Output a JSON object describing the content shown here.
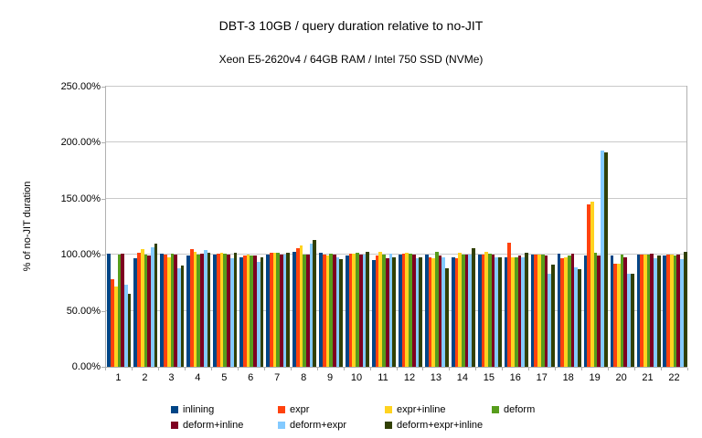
{
  "chart_data": {
    "type": "bar",
    "title": "DBT-3 10GB / query duration relative to no-JIT",
    "subtitle": "Xeon E5-2620v4 / 64GB RAM / Intel 750 SSD (NVMe)",
    "xlabel": "",
    "ylabel": "% of no-JIT duration",
    "units": "percent of no-JIT duration",
    "ylim": [
      0,
      250
    ],
    "ytick_step": 50,
    "ytick_labels": [
      "0.00%",
      "50.00%",
      "100.00%",
      "150.00%",
      "200.00%",
      "250.00%"
    ],
    "grid": true,
    "legend_position": "bottom",
    "categories": [
      "1",
      "2",
      "3",
      "4",
      "5",
      "6",
      "7",
      "8",
      "9",
      "10",
      "11",
      "12",
      "13",
      "14",
      "15",
      "16",
      "17",
      "18",
      "19",
      "20",
      "21",
      "22"
    ],
    "series": [
      {
        "name": "inlining",
        "color": "#004586",
        "values": [
          101,
          97,
          101,
          99,
          100,
          98,
          100,
          103,
          102,
          99,
          95,
          100,
          100,
          98,
          100,
          98,
          100,
          101,
          99,
          99,
          100,
          99
        ]
      },
      {
        "name": "expr",
        "color": "#ff420e",
        "values": [
          78,
          102,
          100,
          105,
          101,
          99,
          102,
          106,
          100,
          101,
          99,
          101,
          98,
          97,
          100,
          111,
          100,
          97,
          145,
          92,
          100,
          100
        ]
      },
      {
        "name": "expr+inline",
        "color": "#ffd320",
        "values": [
          72,
          105,
          98,
          103,
          102,
          100,
          102,
          108,
          99,
          101,
          103,
          102,
          97,
          102,
          103,
          98,
          100,
          98,
          147,
          92,
          100,
          100
        ]
      },
      {
        "name": "deform",
        "color": "#579d1c",
        "values": [
          100,
          100,
          101,
          100,
          101,
          99,
          102,
          100,
          101,
          102,
          100,
          101,
          103,
          100,
          101,
          98,
          100,
          99,
          102,
          100,
          100,
          99
        ]
      },
      {
        "name": "deform+inline",
        "color": "#7e0021",
        "values": [
          101,
          99,
          100,
          101,
          100,
          99,
          100,
          100,
          100,
          100,
          97,
          100,
          99,
          100,
          100,
          99,
          99,
          101,
          99,
          98,
          101,
          100
        ]
      },
      {
        "name": "deform+expr",
        "color": "#83caff",
        "values": [
          73,
          107,
          88,
          104,
          97,
          94,
          100,
          110,
          98,
          100,
          101,
          97,
          98,
          100,
          98,
          98,
          83,
          89,
          193,
          83,
          97,
          96
        ]
      },
      {
        "name": "deform+expr+inline",
        "color": "#314004",
        "values": [
          65,
          110,
          90,
          102,
          102,
          98,
          102,
          113,
          96,
          103,
          98,
          98,
          88,
          106,
          98,
          102,
          91,
          87,
          191,
          83,
          99,
          103
        ]
      }
    ]
  }
}
